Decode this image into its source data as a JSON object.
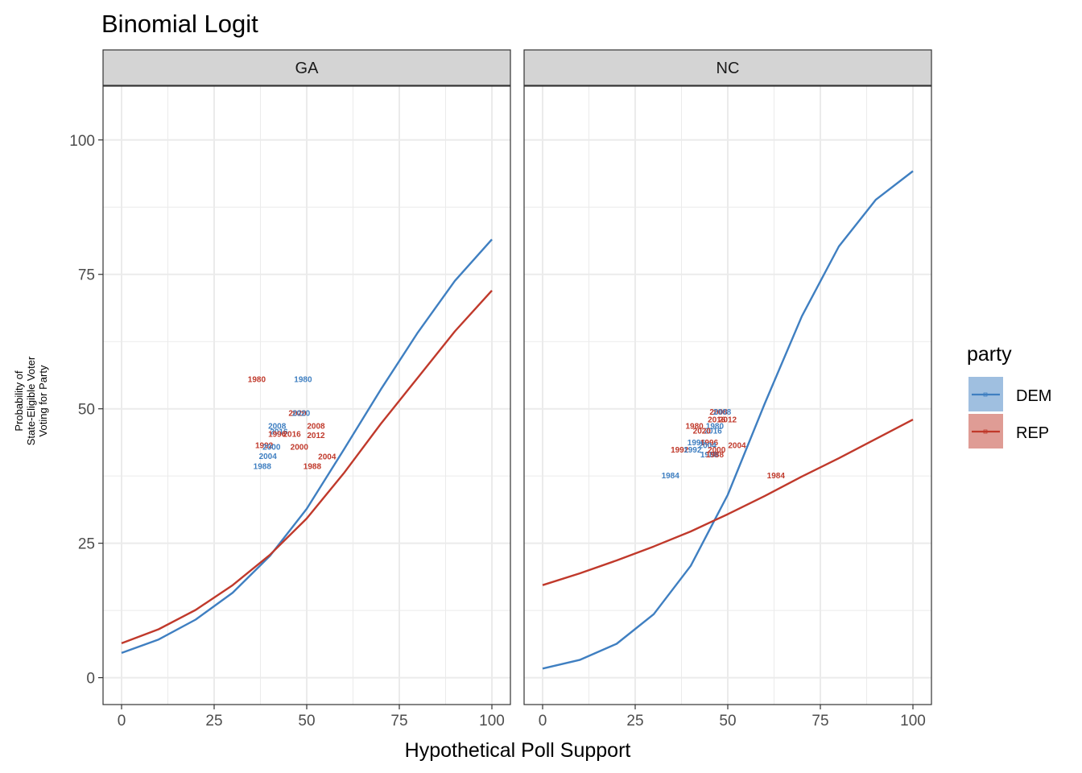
{
  "chart_data": {
    "type": "line",
    "title": "Binomial Logit",
    "xlabel": "Hypothetical Poll Support",
    "ylabel_lines": [
      "Probability of",
      "State-Eligible Voter",
      "Voting for Party"
    ],
    "xlim": [
      -5,
      105
    ],
    "ylim": [
      -5,
      110
    ],
    "x_ticks": [
      0,
      25,
      50,
      75,
      100
    ],
    "y_ticks": [
      0,
      25,
      50,
      75,
      100
    ],
    "grid": true,
    "legend": {
      "title": "party",
      "position": "right",
      "entries": [
        {
          "label": "DEM",
          "color": "#3F7FC1"
        },
        {
          "label": "REP",
          "color": "#C0392B"
        }
      ]
    },
    "colors": {
      "DEM": "#3F7FC1",
      "REP": "#C0392B",
      "strip_bg": "#D4D4D4",
      "grid": "#EBEBEB"
    },
    "panels": [
      {
        "facet": "GA",
        "series": [
          {
            "name": "DEM",
            "x": [
              0,
              10,
              20,
              30,
              40,
              50,
              60,
              70,
              80,
              90,
              100
            ],
            "y": [
              4.6,
              7.1,
              10.8,
              15.8,
              22.6,
              31.4,
              42.4,
              53.6,
              64.2,
              73.8,
              81.5
            ]
          },
          {
            "name": "REP",
            "x": [
              0,
              10,
              20,
              30,
              40,
              50,
              60,
              70,
              80,
              90,
              100
            ],
            "y": [
              6.4,
              9.0,
              12.6,
              17.2,
              22.8,
              29.6,
              38.0,
              47.2,
              55.8,
              64.4,
              72.0
            ]
          }
        ],
        "labels": [
          {
            "party": "REP",
            "year": "1980",
            "x": 36.5,
            "y": 55.6
          },
          {
            "party": "DEM",
            "year": "1980",
            "x": 49,
            "y": 55.6
          },
          {
            "party": "REP",
            "year": "2020",
            "x": 47.5,
            "y": 49.3
          },
          {
            "party": "DEM",
            "year": "2020",
            "x": 48.5,
            "y": 49.3
          },
          {
            "party": "REP",
            "year": "2008",
            "x": 52.5,
            "y": 46.9
          },
          {
            "party": "DEM",
            "year": "2008",
            "x": 42,
            "y": 46.9
          },
          {
            "party": "DEM",
            "year": "2016",
            "x": 42.5,
            "y": 45.8
          },
          {
            "party": "REP",
            "year": "1996",
            "x": 42,
            "y": 45.4
          },
          {
            "party": "REP",
            "year": "2016",
            "x": 46,
            "y": 45.4
          },
          {
            "party": "REP",
            "year": "2012",
            "x": 52.5,
            "y": 45.2
          },
          {
            "party": "REP",
            "year": "1992",
            "x": 38.5,
            "y": 43.3
          },
          {
            "party": "DEM",
            "year": "2000",
            "x": 40.5,
            "y": 43.0
          },
          {
            "party": "REP",
            "year": "2000",
            "x": 48,
            "y": 43.0
          },
          {
            "party": "DEM",
            "year": "2004",
            "x": 39.5,
            "y": 41.3
          },
          {
            "party": "REP",
            "year": "2004",
            "x": 55.5,
            "y": 41.2
          },
          {
            "party": "DEM",
            "year": "1988",
            "x": 38,
            "y": 39.4
          },
          {
            "party": "REP",
            "year": "1988",
            "x": 51.5,
            "y": 39.4
          }
        ]
      },
      {
        "facet": "NC",
        "series": [
          {
            "name": "DEM",
            "x": [
              0,
              10,
              20,
              30,
              40,
              50,
              60,
              70,
              80,
              90,
              100
            ],
            "y": [
              1.7,
              3.3,
              6.3,
              11.8,
              20.8,
              34.0,
              51.0,
              67.2,
              80.2,
              88.9,
              94.2
            ]
          },
          {
            "name": "REP",
            "x": [
              0,
              10,
              20,
              30,
              40,
              50,
              60,
              70,
              80,
              90,
              100
            ],
            "y": [
              17.2,
              19.4,
              21.8,
              24.4,
              27.2,
              30.4,
              33.8,
              37.4,
              40.8,
              44.4,
              48.0
            ]
          }
        ],
        "labels": [
          {
            "party": "REP",
            "year": "2008",
            "x": 47.5,
            "y": 49.5
          },
          {
            "party": "DEM",
            "year": "2008",
            "x": 48.5,
            "y": 49.5
          },
          {
            "party": "REP",
            "year": "2012",
            "x": 50,
            "y": 48.1
          },
          {
            "party": "REP",
            "year": "2016",
            "x": 47,
            "y": 48.1
          },
          {
            "party": "REP",
            "year": "1980",
            "x": 41,
            "y": 46.9
          },
          {
            "party": "DEM",
            "year": "1980",
            "x": 46.5,
            "y": 46.9
          },
          {
            "party": "DEM",
            "year": "2016",
            "x": 46,
            "y": 46.0
          },
          {
            "party": "REP",
            "year": "2020",
            "x": 43,
            "y": 46.0
          },
          {
            "party": "DEM",
            "year": "1996",
            "x": 41.5,
            "y": 43.8
          },
          {
            "party": "REP",
            "year": "1996",
            "x": 45,
            "y": 43.8
          },
          {
            "party": "REP",
            "year": "2004",
            "x": 52.5,
            "y": 43.3
          },
          {
            "party": "DEM",
            "year": "2004",
            "x": 44.5,
            "y": 43.3
          },
          {
            "party": "REP",
            "year": "1992",
            "x": 37,
            "y": 42.5
          },
          {
            "party": "DEM",
            "year": "1992",
            "x": 40.5,
            "y": 42.5
          },
          {
            "party": "REP",
            "year": "2000",
            "x": 47,
            "y": 42.5
          },
          {
            "party": "DEM",
            "year": "1988",
            "x": 45,
            "y": 41.6
          },
          {
            "party": "REP",
            "year": "1988",
            "x": 46.5,
            "y": 41.6
          },
          {
            "party": "DEM",
            "year": "1984",
            "x": 34.5,
            "y": 37.7
          },
          {
            "party": "REP",
            "year": "1984",
            "x": 63,
            "y": 37.7
          }
        ]
      }
    ]
  }
}
